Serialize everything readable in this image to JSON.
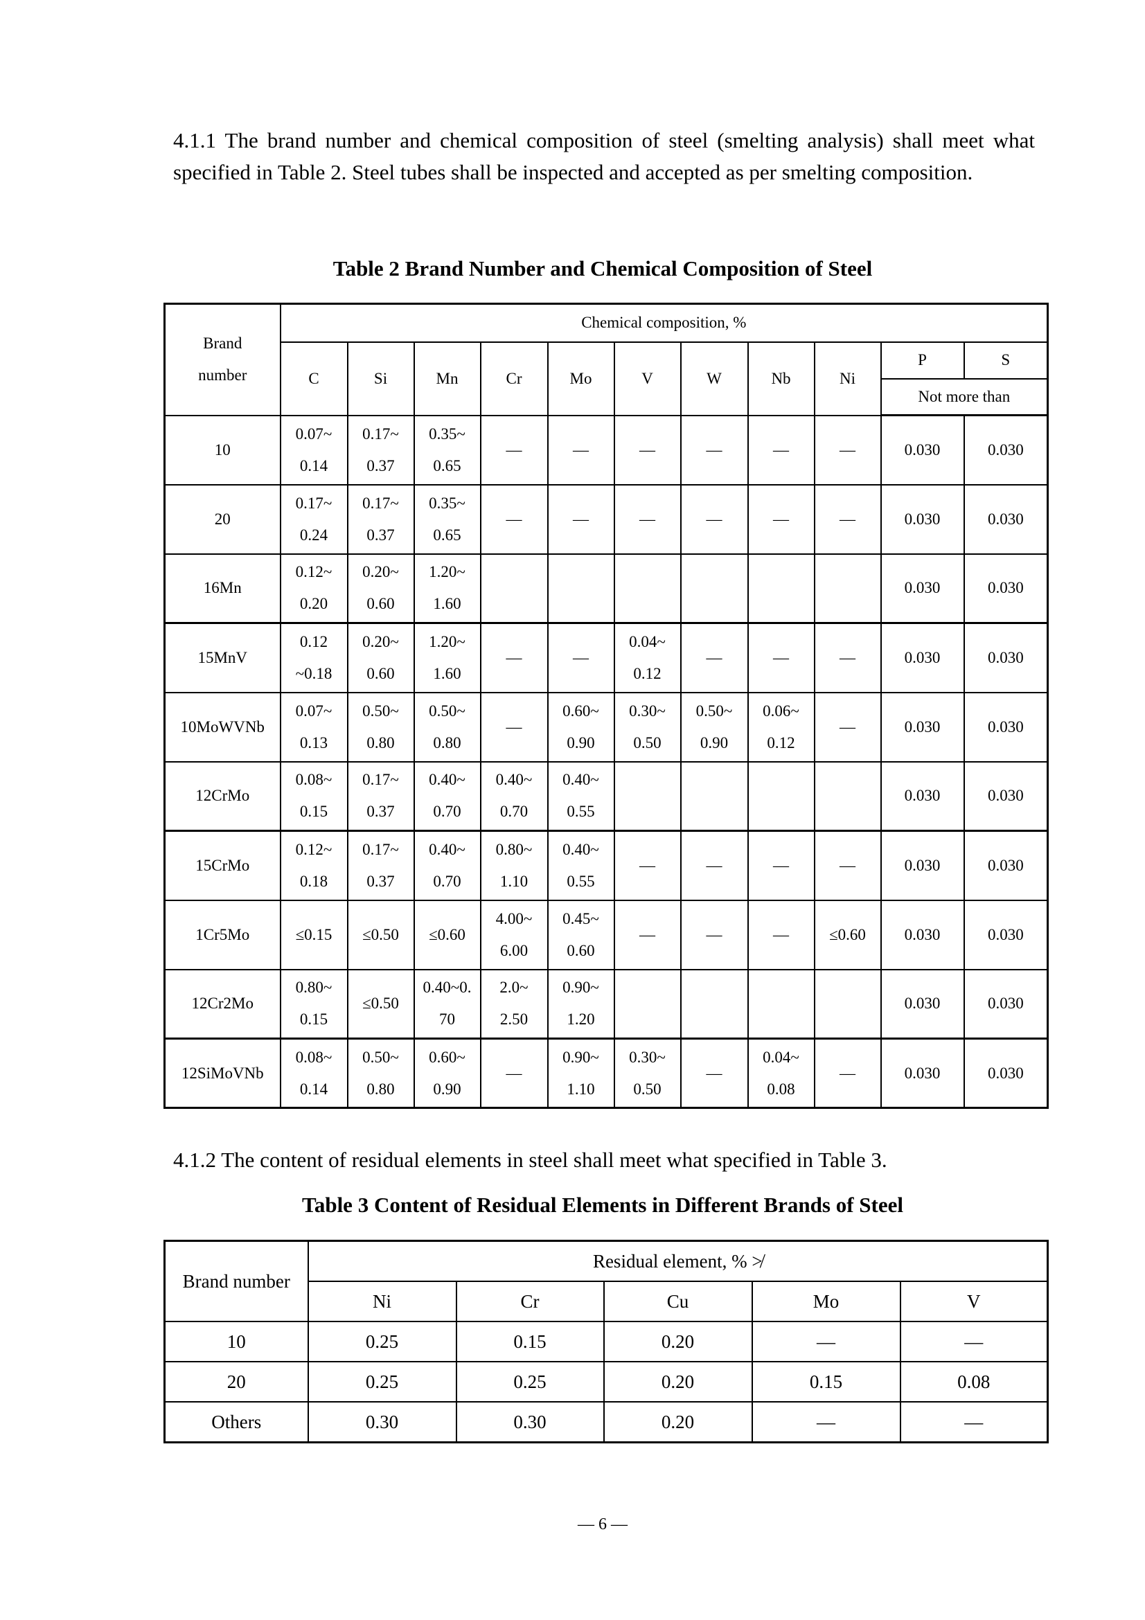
{
  "section_411": "4.1.1  The brand number and chemical composition of steel (smelting analysis) shall meet what specified in Table 2. Steel tubes shall be inspected and accepted as per smelting composition.",
  "table2": {
    "title": "Table 2 Brand Number and Chemical Composition of Steel",
    "brand_header": "Brand\nnumber",
    "group_header": "Chemical composition, %",
    "elements": [
      "C",
      "Si",
      "Mn",
      "Cr",
      "Mo",
      "V",
      "W",
      "Nb",
      "Ni"
    ],
    "p_header": "P",
    "s_header": "S",
    "limit_header": "Not more than",
    "rows": [
      {
        "brand": "10",
        "values": [
          "0.07~\n0.14",
          "0.17~\n0.37",
          "0.35~\n0.65",
          "—",
          "—",
          "—",
          "—",
          "—",
          "—",
          "0.030",
          "0.030"
        ]
      },
      {
        "brand": "20",
        "values": [
          "0.17~\n0.24",
          "0.17~\n0.37",
          "0.35~\n0.65",
          "—",
          "—",
          "—",
          "—",
          "—",
          "—",
          "0.030",
          "0.030"
        ]
      },
      {
        "brand": "16Mn",
        "values": [
          "0.12~\n0.20",
          "0.20~\n0.60",
          "1.20~\n1.60",
          "",
          "",
          "",
          "",
          "",
          "",
          "0.030",
          "0.030"
        ]
      },
      {
        "brand": "15MnV",
        "values": [
          "0.12\n~0.18",
          "0.20~\n0.60",
          "1.20~\n1.60",
          "—",
          "—",
          "0.04~\n0.12",
          "—",
          "—",
          "—",
          "0.030",
          "0.030"
        ]
      },
      {
        "brand": "10MoWVNb",
        "values": [
          "0.07~\n0.13",
          "0.50~\n0.80",
          "0.50~\n0.80",
          "—",
          "0.60~\n0.90",
          "0.30~\n0.50",
          "0.50~\n0.90",
          "0.06~\n0.12",
          "—",
          "0.030",
          "0.030"
        ]
      },
      {
        "brand": "12CrMo",
        "values": [
          "0.08~\n0.15",
          "0.17~\n0.37",
          "0.40~\n0.70",
          "0.40~\n0.70",
          "0.40~\n0.55",
          "",
          "",
          "",
          "",
          "0.030",
          "0.030"
        ]
      },
      {
        "brand": "15CrMo",
        "values": [
          "0.12~\n0.18",
          "0.17~\n0.37",
          "0.40~\n0.70",
          "0.80~\n1.10",
          "0.40~\n0.55",
          "—",
          "—",
          "—",
          "—",
          "0.030",
          "0.030"
        ]
      },
      {
        "brand": "1Cr5Mo",
        "values": [
          "≤0.15",
          "≤0.50",
          "≤0.60",
          "4.00~\n6.00",
          "0.45~\n0.60",
          "—",
          "—",
          "—",
          "≤0.60",
          "0.030",
          "0.030"
        ]
      },
      {
        "brand": "12Cr2Mo",
        "values": [
          "0.80~\n0.15",
          "≤0.50",
          "0.40~0.\n70",
          "2.0~\n2.50",
          "0.90~\n1.20",
          "",
          "",
          "",
          "",
          "0.030",
          "0.030"
        ]
      },
      {
        "brand": "12SiMoVNb",
        "values": [
          "0.08~\n0.14",
          "0.50~\n0.80",
          "0.60~\n0.90",
          "—",
          "0.90~\n1.10",
          "0.30~\n0.50",
          "—",
          "0.04~\n0.08",
          "—",
          "0.030",
          "0.030"
        ]
      }
    ]
  },
  "section_412": "4.1.2   The content of residual elements in steel shall meet what specified in Table 3.",
  "table3": {
    "title": "Table 3 Content of Residual Elements in Different Brands of Steel",
    "brand_header": "Brand number",
    "group_header": "Residual element, % ≯",
    "elements": [
      "Ni",
      "Cr",
      "Cu",
      "Mo",
      "V"
    ],
    "rows": [
      {
        "brand": "10",
        "values": [
          "0.25",
          "0.15",
          "0.20",
          "—",
          "—"
        ]
      },
      {
        "brand": "20",
        "values": [
          "0.25",
          "0.25",
          "0.20",
          "0.15",
          "0.08"
        ]
      },
      {
        "brand": "Others",
        "values": [
          "0.30",
          "0.30",
          "0.20",
          "—",
          "—"
        ]
      }
    ]
  },
  "page_number": "— 6 —"
}
